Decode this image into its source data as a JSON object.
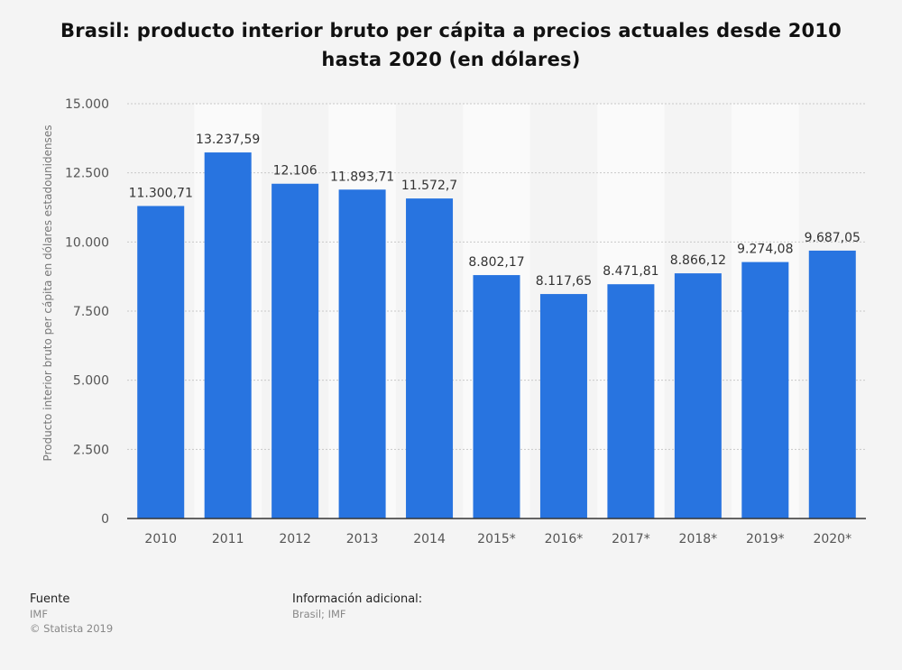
{
  "title": "Brasil: producto interior bruto per cápita a precios actuales desde 2010 hasta 2020 (en dólares)",
  "footer": {
    "source_label": "Fuente",
    "source_value": "IMF",
    "copyright": "© Statista 2019",
    "info_label": "Información adicional:",
    "info_value": "Brasil; IMF"
  },
  "colors": {
    "bar": "#2874e0",
    "band": "#fafafa",
    "grid": "#c8c8c8",
    "axis": "#333333"
  },
  "chart_data": {
    "type": "bar",
    "categories": [
      "2010",
      "2011",
      "2012",
      "2013",
      "2014",
      "2015*",
      "2016*",
      "2017*",
      "2018*",
      "2019*",
      "2020*"
    ],
    "values": [
      11300.71,
      13237.59,
      12106,
      11893.71,
      11572.7,
      8802.17,
      8117.65,
      8471.81,
      8866.12,
      9274.08,
      9687.05
    ],
    "value_labels": [
      "11.300,71",
      "13.237,59",
      "12.106",
      "11.893,71",
      "11.572,7",
      "8.802,17",
      "8.117,65",
      "8.471,81",
      "8.866,12",
      "9.274,08",
      "9.687,05"
    ],
    "ylabel": "Producto interior bruto per cápita en dólares estadounidenses",
    "xlabel": "",
    "ylim": [
      0,
      15000
    ],
    "yticks": [
      0,
      2500,
      5000,
      7500,
      10000,
      12500,
      15000
    ],
    "ytick_labels": [
      "0",
      "2.500",
      "5.000",
      "7.500",
      "10.000",
      "12.500",
      "15.000"
    ],
    "grid": true
  }
}
